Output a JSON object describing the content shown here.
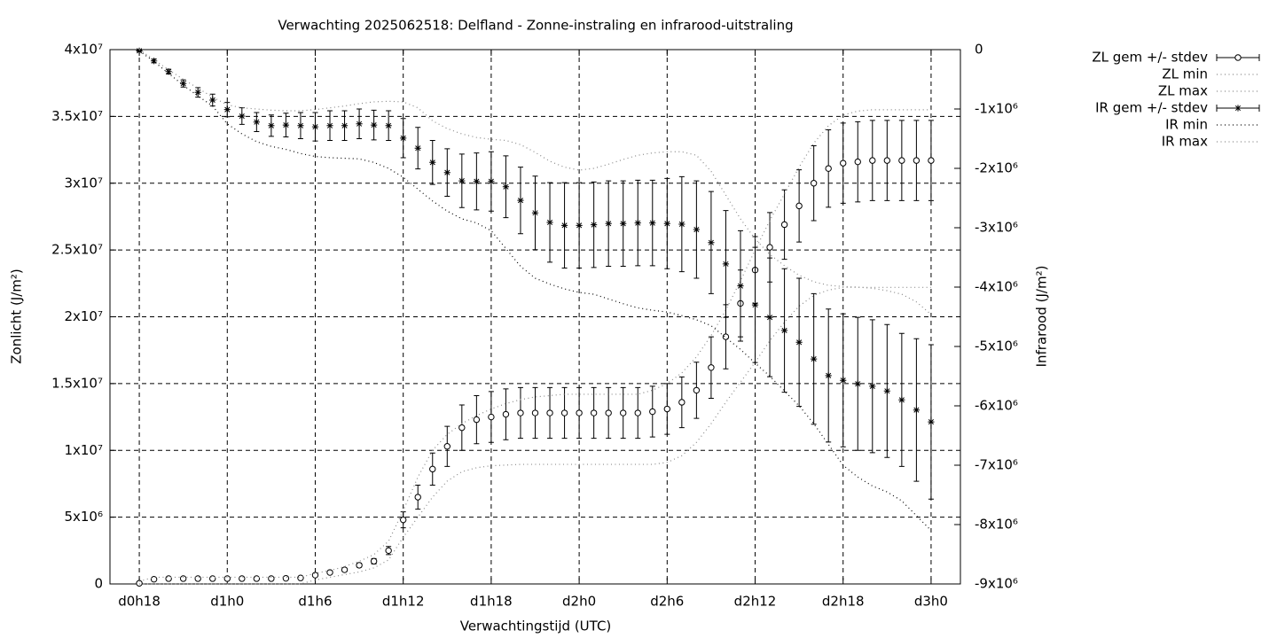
{
  "chart_data": {
    "type": "errorbar",
    "title": "Verwachting 2025062518: Delfland - Zonne-instraling en infrarood-uitstraling",
    "xlabel": "Verwachtingstijd (UTC)",
    "ylabel": "Zonlicht (J/m²)",
    "y2label": "Infrarood (J/m²)",
    "x": [
      18,
      19,
      20,
      21,
      22,
      23,
      24,
      25,
      26,
      27,
      28,
      29,
      30,
      31,
      32,
      33,
      34,
      35,
      36,
      37,
      38,
      39,
      40,
      41,
      42,
      43,
      44,
      45,
      46,
      47,
      48,
      49,
      50,
      51,
      52,
      53,
      54,
      55,
      56,
      57,
      58,
      59,
      60,
      61,
      62,
      63,
      64,
      65,
      66,
      67,
      68,
      69,
      70,
      71,
      72
    ],
    "xlim": [
      16,
      74
    ],
    "xticks": [
      {
        "value": 18,
        "label": "d0h18"
      },
      {
        "value": 24,
        "label": "d1h0"
      },
      {
        "value": 30,
        "label": "d1h6"
      },
      {
        "value": 36,
        "label": "d1h12"
      },
      {
        "value": 42,
        "label": "d1h18"
      },
      {
        "value": 48,
        "label": "d2h0"
      },
      {
        "value": 54,
        "label": "d2h6"
      },
      {
        "value": 60,
        "label": "d2h12"
      },
      {
        "value": 66,
        "label": "d2h18"
      },
      {
        "value": 72,
        "label": "d3h0"
      }
    ],
    "ylim": [
      0,
      40000000.0
    ],
    "yticks": [
      0,
      {
        "value": 5000000.0,
        "label": "5x10⁶"
      },
      {
        "value": 10000000.0,
        "label": "1x10⁷"
      },
      {
        "value": 15000000.0,
        "label": "1.5x10⁷"
      },
      {
        "value": 20000000.0,
        "label": "2x10⁷"
      },
      {
        "value": 25000000.0,
        "label": "2.5x10⁷"
      },
      {
        "value": 30000000.0,
        "label": "3x10⁷"
      },
      {
        "value": 35000000.0,
        "label": "3.5x10⁷"
      },
      {
        "value": 40000000.0,
        "label": "4x10⁷"
      }
    ],
    "y2lim": [
      -9000000.0,
      0
    ],
    "y2ticks": [
      0,
      {
        "value": -1000000.0,
        "label": "-1x10⁶"
      },
      {
        "value": -2000000.0,
        "label": "-2x10⁶"
      },
      {
        "value": -3000000.0,
        "label": "-3x10⁶"
      },
      {
        "value": -4000000.0,
        "label": "-4x10⁶"
      },
      {
        "value": -5000000.0,
        "label": "-5x10⁶"
      },
      {
        "value": -6000000.0,
        "label": "-6x10⁶"
      },
      {
        "value": -7000000.0,
        "label": "-7x10⁶"
      },
      {
        "value": -8000000.0,
        "label": "-8x10⁶"
      },
      {
        "value": -9000000.0,
        "label": "-9x10⁶"
      }
    ],
    "grid": true,
    "legend": "right",
    "series": [
      {
        "name": "ZL gem +/- stdev",
        "color": "#000000",
        "marker": "circle",
        "values": [
          50000.0,
          350000.0,
          400000.0,
          400000.0,
          400000.0,
          400000.0,
          400000.0,
          400000.0,
          400000.0,
          400000.0,
          420000.0,
          450000.0,
          660000.0,
          860000.0,
          1060000.0,
          1400000.0,
          1700000.0,
          2500000.0,
          4800000.0,
          6500000.0,
          8600000.0,
          10300000.0,
          11700000.0,
          12300000.0,
          12500000.0,
          12700000.0,
          12800000.0,
          12800000.0,
          12800000.0,
          12800000.0,
          12800000.0,
          12800000.0,
          12800000.0,
          12800000.0,
          12800000.0,
          12900000.0,
          13100000.0,
          13600000.0,
          14500000.0,
          16200000.0,
          18500000.0,
          21000000.0,
          23500000.0,
          25200000.0,
          26900000.0,
          28300000.0,
          30000000.0,
          31100000.0,
          31500000.0,
          31600000.0,
          31700000.0,
          31700000.0,
          31700000.0,
          31700000.0,
          31700000.0
        ],
        "errors": [
          20000.0,
          50000.0,
          50000.0,
          50000.0,
          50000.0,
          50000.0,
          50000.0,
          50000.0,
          50000.0,
          50000.0,
          50000.0,
          50000.0,
          80000.0,
          100000.0,
          120000.0,
          150000.0,
          200000.0,
          300000.0,
          600000.0,
          900000.0,
          1200000.0,
          1500000.0,
          1700000.0,
          1800000.0,
          1900000.0,
          1900000.0,
          1900000.0,
          1900000.0,
          1900000.0,
          1900000.0,
          1900000.0,
          1900000.0,
          1900000.0,
          1900000.0,
          1900000.0,
          1900000.0,
          1900000.0,
          1900000.0,
          2100000.0,
          2300000.0,
          2400000.0,
          2500000.0,
          2500000.0,
          2600000.0,
          2600000.0,
          2700000.0,
          2800000.0,
          2900000.0,
          3000000.0,
          3000000.0,
          3000000.0,
          3000000.0,
          3000000.0,
          3000000.0,
          3000000.0
        ]
      },
      {
        "name": "ZL min",
        "color": "#888888",
        "line": "dotted",
        "values": [
          0,
          0,
          0,
          0,
          0,
          0,
          0,
          0,
          0,
          0,
          0,
          0,
          300000.0,
          500000.0,
          700000.0,
          900000.0,
          1200000.0,
          1800000.0,
          3500000.0,
          5000000.0,
          6500000.0,
          7700000.0,
          8400000.0,
          8700000.0,
          8850000.0,
          8900000.0,
          8950000.0,
          8950000.0,
          8950000.0,
          8950000.0,
          8950000.0,
          8950000.0,
          8950000.0,
          8950000.0,
          8950000.0,
          8950000.0,
          9100000.0,
          9600000.0,
          10600000.0,
          12000000.0,
          13600000.0,
          15100000.0,
          16600000.0,
          18200000.0,
          19600000.0,
          20800000.0,
          21600000.0,
          22000000.0,
          22200000.0,
          22200000.0,
          22200000.0,
          22200000.0,
          22200000.0,
          22200000.0,
          22200000.0
        ]
      },
      {
        "name": "ZL max",
        "color": "#888888",
        "line": "dotted",
        "values": [
          200000.0,
          500000.0,
          500000.0,
          500000.0,
          500000.0,
          500000.0,
          500000.0,
          500000.0,
          500000.0,
          500000.0,
          500000.0,
          500000.0,
          800000.0,
          1000000.0,
          1300000.0,
          1700000.0,
          2200000.0,
          3200000.0,
          5500000.0,
          8000000.0,
          10000000.0,
          11200000.0,
          12000000.0,
          12600000.0,
          13100000.0,
          13500000.0,
          13800000.0,
          14000000.0,
          14100000.0,
          14200000.0,
          14200000.0,
          14200000.0,
          14200000.0,
          14200000.0,
          14200000.0,
          14500000.0,
          15000000.0,
          15800000.0,
          17000000.0,
          18600000.0,
          20500000.0,
          22700000.0,
          25000000.0,
          27200000.0,
          29200000.0,
          31200000.0,
          33000000.0,
          34300000.0,
          35100000.0,
          35400000.0,
          35500000.0,
          35500000.0,
          35500000.0,
          35500000.0,
          35500000.0
        ]
      },
      {
        "name": "IR gem +/- stdev",
        "color": "#000000",
        "marker": "star",
        "axis": "y2",
        "values": [
          -20000.0,
          -190000.0,
          -370000.0,
          -570000.0,
          -720000.0,
          -850000.0,
          -1010000.0,
          -1120000.0,
          -1220000.0,
          -1280000.0,
          -1270000.0,
          -1280000.0,
          -1300000.0,
          -1280000.0,
          -1280000.0,
          -1250000.0,
          -1270000.0,
          -1280000.0,
          -1490000.0,
          -1660000.0,
          -1900000.0,
          -2070000.0,
          -2210000.0,
          -2220000.0,
          -2220000.0,
          -2310000.0,
          -2540000.0,
          -2750000.0,
          -2910000.0,
          -2960000.0,
          -2960000.0,
          -2950000.0,
          -2930000.0,
          -2930000.0,
          -2920000.0,
          -2920000.0,
          -2930000.0,
          -2940000.0,
          -3030000.0,
          -3250000.0,
          -3610000.0,
          -3980000.0,
          -4300000.0,
          -4510000.0,
          -4730000.0,
          -4930000.0,
          -5210000.0,
          -5490000.0,
          -5570000.0,
          -5630000.0,
          -5670000.0,
          -5750000.0,
          -5900000.0,
          -6070000.0,
          -6270000.0
        ],
        "errors": [
          10000.0,
          30000.0,
          40000.0,
          60000.0,
          80000.0,
          100000.0,
          120000.0,
          140000.0,
          160000.0,
          180000.0,
          200000.0,
          220000.0,
          240000.0,
          250000.0,
          250000.0,
          250000.0,
          250000.0,
          250000.0,
          330000.0,
          350000.0,
          370000.0,
          400000.0,
          450000.0,
          480000.0,
          500000.0,
          520000.0,
          560000.0,
          620000.0,
          670000.0,
          720000.0,
          720000.0,
          720000.0,
          720000.0,
          720000.0,
          720000.0,
          720000.0,
          760000.0,
          800000.0,
          820000.0,
          860000.0,
          900000.0,
          930000.0,
          970000.0,
          1000000.0,
          1040000.0,
          1080000.0,
          1100000.0,
          1120000.0,
          1120000.0,
          1120000.0,
          1120000.0,
          1120000.0,
          1120000.0,
          1200000.0,
          1300000.0
        ]
      },
      {
        "name": "IR min",
        "color": "#000000",
        "line": "dotted",
        "axis": "y2",
        "values": [
          -20000.0,
          -200000.0,
          -400000.0,
          -600000.0,
          -780000.0,
          -950000.0,
          -1250000.0,
          -1420000.0,
          -1550000.0,
          -1630000.0,
          -1680000.0,
          -1750000.0,
          -1800000.0,
          -1820000.0,
          -1830000.0,
          -1840000.0,
          -1900000.0,
          -2000000.0,
          -2150000.0,
          -2350000.0,
          -2550000.0,
          -2720000.0,
          -2850000.0,
          -2920000.0,
          -3050000.0,
          -3350000.0,
          -3650000.0,
          -3850000.0,
          -3950000.0,
          -4030000.0,
          -4090000.0,
          -4120000.0,
          -4200000.0,
          -4280000.0,
          -4350000.0,
          -4390000.0,
          -4420000.0,
          -4480000.0,
          -4550000.0,
          -4650000.0,
          -4850000.0,
          -5050000.0,
          -5280000.0,
          -5500000.0,
          -5750000.0,
          -6000000.0,
          -6300000.0,
          -6650000.0,
          -7000000.0,
          -7200000.0,
          -7350000.0,
          -7450000.0,
          -7600000.0,
          -7850000.0,
          -8100000.0
        ]
      },
      {
        "name": "IR max",
        "color": "#888888",
        "line": "dotted",
        "axis": "y2",
        "values": [
          0,
          -170000.0,
          -340000.0,
          -500000.0,
          -650000.0,
          -800000.0,
          -930000.0,
          -980000.0,
          -1000000.0,
          -1020000.0,
          -1030000.0,
          -1030000.0,
          -1010000.0,
          -980000.0,
          -950000.0,
          -910000.0,
          -880000.0,
          -870000.0,
          -880000.0,
          -980000.0,
          -1200000.0,
          -1330000.0,
          -1420000.0,
          -1480000.0,
          -1510000.0,
          -1530000.0,
          -1600000.0,
          -1730000.0,
          -1880000.0,
          -1980000.0,
          -2030000.0,
          -2000000.0,
          -1930000.0,
          -1850000.0,
          -1780000.0,
          -1740000.0,
          -1720000.0,
          -1720000.0,
          -1780000.0,
          -2050000.0,
          -2450000.0,
          -2850000.0,
          -3190000.0,
          -3450000.0,
          -3640000.0,
          -3800000.0,
          -3910000.0,
          -3970000.0,
          -3990000.0,
          -4000000.0,
          -4020000.0,
          -4060000.0,
          -4120000.0,
          -4250000.0,
          -4460000.0
        ]
      }
    ]
  }
}
